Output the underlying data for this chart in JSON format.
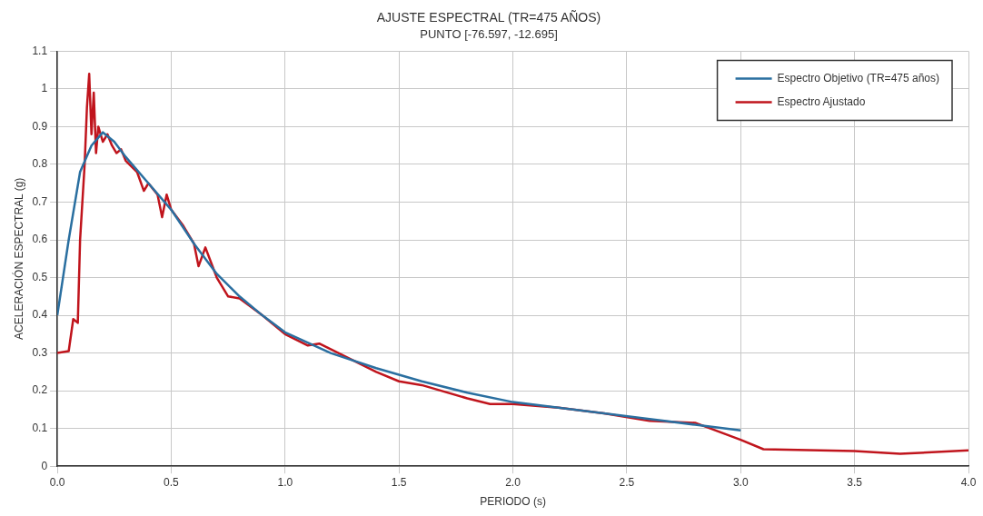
{
  "chart_data": {
    "type": "line",
    "title": "AJUSTE ESPECTRAL (TR=475 AÑOS)",
    "subtitle": "PUNTO [-76.597, -12.695]",
    "xlabel": "PERIODO (s)",
    "ylabel": "ACELERACIÓN ESPECTRAL (g)",
    "xlim": [
      0,
      4
    ],
    "xticks": [
      {
        "value": 0,
        "label": "0.0"
      },
      {
        "value": 0.5,
        "label": "0.5"
      },
      {
        "value": 1,
        "label": "1.0"
      },
      {
        "value": 1.5,
        "label": "1.5"
      },
      {
        "value": 2,
        "label": "2.0"
      },
      {
        "value": 2.5,
        "label": "2.5"
      },
      {
        "value": 3,
        "label": "3.0"
      },
      {
        "value": 3.5,
        "label": "3.5"
      },
      {
        "value": 4,
        "label": "4.0"
      }
    ],
    "ylim": [
      0,
      1.1
    ],
    "yticks": [
      0,
      0.1,
      0.2,
      0.3,
      0.4,
      0.5,
      0.6,
      0.7,
      0.8,
      0.9,
      1,
      1.1
    ],
    "grid": true,
    "legend": "top right",
    "marker": "none",
    "line_style": "solid",
    "series": [
      {
        "name": "Espectro Objetivo (TR=475 años)",
        "color": "#2a6fa0",
        "x": [
          0,
          0.05,
          0.1,
          0.15,
          0.2,
          0.25,
          0.3,
          0.4,
          0.5,
          0.6,
          0.7,
          0.8,
          0.9,
          1.0,
          1.2,
          1.4,
          1.6,
          1.8,
          2.0,
          2.2,
          2.4,
          2.6,
          2.8,
          3.0
        ],
        "values": [
          0.4,
          0.6,
          0.78,
          0.85,
          0.885,
          0.86,
          0.82,
          0.75,
          0.68,
          0.59,
          0.51,
          0.45,
          0.4,
          0.355,
          0.3,
          0.26,
          0.225,
          0.195,
          0.17,
          0.155,
          0.14,
          0.125,
          0.11,
          0.095
        ]
      },
      {
        "name": "Espectro Ajustado",
        "color": "#c0141c",
        "x": [
          0,
          0.05,
          0.07,
          0.09,
          0.1,
          0.12,
          0.13,
          0.14,
          0.15,
          0.16,
          0.17,
          0.18,
          0.2,
          0.22,
          0.24,
          0.26,
          0.28,
          0.3,
          0.35,
          0.38,
          0.4,
          0.44,
          0.46,
          0.48,
          0.5,
          0.55,
          0.6,
          0.62,
          0.65,
          0.7,
          0.75,
          0.8,
          0.9,
          1.0,
          1.1,
          1.15,
          1.3,
          1.4,
          1.5,
          1.6,
          1.8,
          1.9,
          2.0,
          2.2,
          2.4,
          2.6,
          2.8,
          3.0,
          3.1,
          3.5,
          3.7,
          4.0
        ],
        "values": [
          0.3,
          0.305,
          0.39,
          0.38,
          0.6,
          0.8,
          0.95,
          1.04,
          0.88,
          0.99,
          0.83,
          0.9,
          0.86,
          0.88,
          0.85,
          0.83,
          0.84,
          0.81,
          0.78,
          0.73,
          0.75,
          0.72,
          0.66,
          0.72,
          0.68,
          0.64,
          0.59,
          0.53,
          0.58,
          0.5,
          0.45,
          0.445,
          0.4,
          0.35,
          0.32,
          0.325,
          0.28,
          0.25,
          0.225,
          0.215,
          0.18,
          0.165,
          0.165,
          0.155,
          0.14,
          0.12,
          0.115,
          0.07,
          0.045,
          0.04,
          0.033,
          0.042
        ]
      }
    ]
  }
}
